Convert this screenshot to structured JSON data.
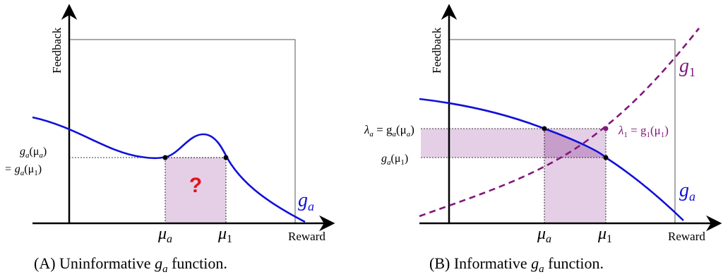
{
  "colors": {
    "curve": "#1010d8",
    "dashed_curve": "#80187a",
    "shade": "#e5cfe6",
    "shade_dark": "#c79ecb",
    "question": "#e0141a",
    "axis": "#000000",
    "box": "#555555"
  },
  "panel_a": {
    "x_axis_label": "Reward",
    "y_axis_label": "Feedback",
    "tick_mu_a": "μ",
    "tick_mu_a_sub": "a",
    "tick_mu_1": "μ",
    "tick_mu_1_sub": "1",
    "y_label_line1": "g",
    "y_label_line1_sub": "a",
    "y_label_line1_arg": "(μ",
    "y_label_line1_arg_sub": "a",
    "y_label_line1_close": ")",
    "y_label_line2": "= g",
    "y_label_line2_sub": "a",
    "y_label_line2_arg": "(μ",
    "y_label_line2_arg_sub": "1",
    "y_label_line2_close": ")",
    "curve_label": "g",
    "curve_label_sub": "a",
    "question": "?",
    "caption_prefix": "(A) Uninformative ",
    "caption_g": "g",
    "caption_sub": "a",
    "caption_suffix": " function."
  },
  "panel_b": {
    "x_axis_label": "Reward",
    "y_axis_label": "Feedback",
    "tick_mu_a": "μ",
    "tick_mu_a_sub": "a",
    "tick_mu_1": "μ",
    "tick_mu_1_sub": "1",
    "lambda_a_label": "λ",
    "lambda_a_sub": "a",
    "lambda_a_rest": " = g",
    "lambda_a_rest_sub": "a",
    "lambda_a_arg": "(μ",
    "lambda_a_arg_sub": "a",
    "lambda_a_close": ")",
    "g_mu1_label": "g",
    "g_mu1_sub": "a",
    "g_mu1_arg": "(μ",
    "g_mu1_arg_sub": "1",
    "g_mu1_close": ")",
    "lambda_1_label": "λ",
    "lambda_1_sub": "1",
    "lambda_1_rest": " = g",
    "lambda_1_rest_sub": "1",
    "lambda_1_arg": "(μ",
    "lambda_1_arg_sub": "1",
    "lambda_1_close": ")",
    "curve_label": "g",
    "curve_label_sub": "a",
    "dashed_label": "g",
    "dashed_label_sub": "1",
    "caption_prefix": "(B) Informative ",
    "caption_g": "g",
    "caption_sub": "a",
    "caption_suffix": " function."
  }
}
